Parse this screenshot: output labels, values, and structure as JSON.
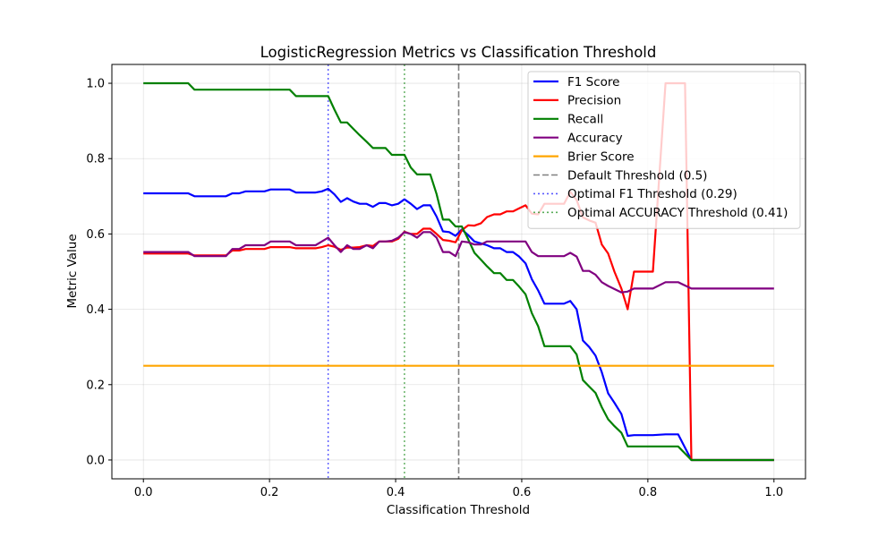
{
  "chart_data": {
    "type": "line",
    "title": "LogisticRegression Metrics vs Classification Threshold",
    "xlabel": "Classification Threshold",
    "ylabel": "Metric Value",
    "xlim": [
      -0.05,
      1.05
    ],
    "ylim": [
      -0.05,
      1.05
    ],
    "x_ticks": [
      0.0,
      0.2,
      0.4,
      0.6,
      0.8,
      1.0
    ],
    "y_ticks": [
      0.0,
      0.2,
      0.4,
      0.6,
      0.8,
      1.0
    ],
    "x_tick_labels": [
      "0.0",
      "0.2",
      "0.4",
      "0.6",
      "0.8",
      "1.0"
    ],
    "y_tick_labels": [
      "0.0",
      "0.2",
      "0.4",
      "0.6",
      "0.8",
      "1.0"
    ],
    "grid": true,
    "legend_position": "top-right",
    "series": [
      {
        "name": "F1 Score",
        "color": "#0000ff",
        "points": [
          [
            0.0,
            0.708
          ],
          [
            0.071,
            0.708
          ],
          [
            0.081,
            0.7
          ],
          [
            0.131,
            0.7
          ],
          [
            0.141,
            0.708
          ],
          [
            0.152,
            0.708
          ],
          [
            0.162,
            0.713
          ],
          [
            0.192,
            0.713
          ],
          [
            0.202,
            0.718
          ],
          [
            0.232,
            0.718
          ],
          [
            0.242,
            0.71
          ],
          [
            0.273,
            0.71
          ],
          [
            0.283,
            0.713
          ],
          [
            0.293,
            0.72
          ],
          [
            0.303,
            0.705
          ],
          [
            0.313,
            0.685
          ],
          [
            0.323,
            0.695
          ],
          [
            0.333,
            0.686
          ],
          [
            0.343,
            0.68
          ],
          [
            0.354,
            0.68
          ],
          [
            0.364,
            0.672
          ],
          [
            0.374,
            0.682
          ],
          [
            0.384,
            0.682
          ],
          [
            0.394,
            0.676
          ],
          [
            0.404,
            0.68
          ],
          [
            0.414,
            0.692
          ],
          [
            0.424,
            0.68
          ],
          [
            0.434,
            0.666
          ],
          [
            0.444,
            0.676
          ],
          [
            0.455,
            0.676
          ],
          [
            0.465,
            0.646
          ],
          [
            0.475,
            0.607
          ],
          [
            0.485,
            0.605
          ],
          [
            0.495,
            0.595
          ],
          [
            0.505,
            0.612
          ],
          [
            0.515,
            0.597
          ],
          [
            0.525,
            0.58
          ],
          [
            0.535,
            0.575
          ],
          [
            0.545,
            0.57
          ],
          [
            0.556,
            0.562
          ],
          [
            0.566,
            0.562
          ],
          [
            0.576,
            0.552
          ],
          [
            0.586,
            0.552
          ],
          [
            0.596,
            0.54
          ],
          [
            0.606,
            0.522
          ],
          [
            0.616,
            0.48
          ],
          [
            0.626,
            0.45
          ],
          [
            0.636,
            0.415
          ],
          [
            0.646,
            0.415
          ],
          [
            0.657,
            0.415
          ],
          [
            0.667,
            0.415
          ],
          [
            0.677,
            0.422
          ],
          [
            0.687,
            0.4
          ],
          [
            0.697,
            0.317
          ],
          [
            0.707,
            0.3
          ],
          [
            0.717,
            0.277
          ],
          [
            0.727,
            0.233
          ],
          [
            0.737,
            0.177
          ],
          [
            0.747,
            0.152
          ],
          [
            0.758,
            0.122
          ],
          [
            0.768,
            0.064
          ],
          [
            0.778,
            0.066
          ],
          [
            0.798,
            0.066
          ],
          [
            0.808,
            0.066
          ],
          [
            0.828,
            0.068
          ],
          [
            0.848,
            0.068
          ],
          [
            0.869,
            0.0
          ],
          [
            1.0,
            0.0
          ]
        ]
      },
      {
        "name": "Precision",
        "color": "#ff0000",
        "points": [
          [
            0.0,
            0.548
          ],
          [
            0.071,
            0.548
          ],
          [
            0.081,
            0.543
          ],
          [
            0.131,
            0.543
          ],
          [
            0.141,
            0.556
          ],
          [
            0.152,
            0.556
          ],
          [
            0.162,
            0.56
          ],
          [
            0.192,
            0.56
          ],
          [
            0.202,
            0.565
          ],
          [
            0.232,
            0.565
          ],
          [
            0.242,
            0.562
          ],
          [
            0.273,
            0.562
          ],
          [
            0.283,
            0.565
          ],
          [
            0.293,
            0.57
          ],
          [
            0.303,
            0.566
          ],
          [
            0.313,
            0.558
          ],
          [
            0.323,
            0.564
          ],
          [
            0.333,
            0.564
          ],
          [
            0.343,
            0.565
          ],
          [
            0.354,
            0.57
          ],
          [
            0.364,
            0.568
          ],
          [
            0.374,
            0.58
          ],
          [
            0.384,
            0.58
          ],
          [
            0.394,
            0.58
          ],
          [
            0.404,
            0.587
          ],
          [
            0.414,
            0.606
          ],
          [
            0.424,
            0.6
          ],
          [
            0.434,
            0.6
          ],
          [
            0.444,
            0.614
          ],
          [
            0.455,
            0.614
          ],
          [
            0.465,
            0.6
          ],
          [
            0.475,
            0.584
          ],
          [
            0.485,
            0.582
          ],
          [
            0.495,
            0.578
          ],
          [
            0.505,
            0.61
          ],
          [
            0.515,
            0.623
          ],
          [
            0.525,
            0.622
          ],
          [
            0.535,
            0.628
          ],
          [
            0.545,
            0.645
          ],
          [
            0.556,
            0.652
          ],
          [
            0.566,
            0.652
          ],
          [
            0.576,
            0.66
          ],
          [
            0.586,
            0.66
          ],
          [
            0.596,
            0.668
          ],
          [
            0.606,
            0.676
          ],
          [
            0.616,
            0.654
          ],
          [
            0.626,
            0.652
          ],
          [
            0.636,
            0.68
          ],
          [
            0.646,
            0.68
          ],
          [
            0.657,
            0.68
          ],
          [
            0.667,
            0.68
          ],
          [
            0.677,
            0.712
          ],
          [
            0.687,
            0.69
          ],
          [
            0.697,
            0.644
          ],
          [
            0.707,
            0.636
          ],
          [
            0.717,
            0.63
          ],
          [
            0.727,
            0.572
          ],
          [
            0.737,
            0.548
          ],
          [
            0.747,
            0.5
          ],
          [
            0.758,
            0.455
          ],
          [
            0.768,
            0.4
          ],
          [
            0.778,
            0.5
          ],
          [
            0.798,
            0.5
          ],
          [
            0.808,
            0.5
          ],
          [
            0.828,
            1.0
          ],
          [
            0.859,
            1.0
          ],
          [
            0.869,
            0.0
          ],
          [
            1.0,
            0.0
          ]
        ]
      },
      {
        "name": "Recall",
        "color": "#008000",
        "points": [
          [
            0.0,
            1.0
          ],
          [
            0.071,
            1.0
          ],
          [
            0.081,
            0.983
          ],
          [
            0.131,
            0.983
          ],
          [
            0.141,
            0.983
          ],
          [
            0.232,
            0.983
          ],
          [
            0.242,
            0.966
          ],
          [
            0.293,
            0.966
          ],
          [
            0.303,
            0.93
          ],
          [
            0.313,
            0.896
          ],
          [
            0.323,
            0.896
          ],
          [
            0.333,
            0.879
          ],
          [
            0.343,
            0.862
          ],
          [
            0.354,
            0.845
          ],
          [
            0.364,
            0.828
          ],
          [
            0.384,
            0.828
          ],
          [
            0.394,
            0.81
          ],
          [
            0.414,
            0.81
          ],
          [
            0.424,
            0.776
          ],
          [
            0.434,
            0.758
          ],
          [
            0.455,
            0.758
          ],
          [
            0.465,
            0.706
          ],
          [
            0.475,
            0.638
          ],
          [
            0.485,
            0.638
          ],
          [
            0.495,
            0.62
          ],
          [
            0.505,
            0.62
          ],
          [
            0.515,
            0.586
          ],
          [
            0.525,
            0.55
          ],
          [
            0.535,
            0.532
          ],
          [
            0.545,
            0.514
          ],
          [
            0.556,
            0.496
          ],
          [
            0.566,
            0.496
          ],
          [
            0.576,
            0.478
          ],
          [
            0.586,
            0.478
          ],
          [
            0.596,
            0.46
          ],
          [
            0.606,
            0.44
          ],
          [
            0.616,
            0.39
          ],
          [
            0.626,
            0.355
          ],
          [
            0.636,
            0.302
          ],
          [
            0.677,
            0.302
          ],
          [
            0.687,
            0.28
          ],
          [
            0.697,
            0.212
          ],
          [
            0.707,
            0.195
          ],
          [
            0.717,
            0.178
          ],
          [
            0.727,
            0.14
          ],
          [
            0.737,
            0.108
          ],
          [
            0.747,
            0.09
          ],
          [
            0.758,
            0.072
          ],
          [
            0.768,
            0.036
          ],
          [
            0.848,
            0.036
          ],
          [
            0.869,
            0.0
          ],
          [
            1.0,
            0.0
          ]
        ]
      },
      {
        "name": "Accuracy",
        "color": "#800080",
        "points": [
          [
            0.0,
            0.552
          ],
          [
            0.071,
            0.552
          ],
          [
            0.081,
            0.541
          ],
          [
            0.131,
            0.541
          ],
          [
            0.141,
            0.56
          ],
          [
            0.152,
            0.56
          ],
          [
            0.162,
            0.57
          ],
          [
            0.192,
            0.57
          ],
          [
            0.202,
            0.58
          ],
          [
            0.232,
            0.58
          ],
          [
            0.242,
            0.57
          ],
          [
            0.273,
            0.57
          ],
          [
            0.283,
            0.58
          ],
          [
            0.293,
            0.59
          ],
          [
            0.303,
            0.57
          ],
          [
            0.313,
            0.552
          ],
          [
            0.323,
            0.57
          ],
          [
            0.333,
            0.56
          ],
          [
            0.343,
            0.56
          ],
          [
            0.354,
            0.57
          ],
          [
            0.364,
            0.562
          ],
          [
            0.374,
            0.58
          ],
          [
            0.384,
            0.58
          ],
          [
            0.394,
            0.582
          ],
          [
            0.404,
            0.59
          ],
          [
            0.414,
            0.605
          ],
          [
            0.424,
            0.6
          ],
          [
            0.434,
            0.59
          ],
          [
            0.444,
            0.605
          ],
          [
            0.455,
            0.605
          ],
          [
            0.465,
            0.59
          ],
          [
            0.475,
            0.552
          ],
          [
            0.485,
            0.552
          ],
          [
            0.495,
            0.541
          ],
          [
            0.505,
            0.58
          ],
          [
            0.515,
            0.578
          ],
          [
            0.525,
            0.572
          ],
          [
            0.535,
            0.572
          ],
          [
            0.545,
            0.58
          ],
          [
            0.606,
            0.58
          ],
          [
            0.616,
            0.552
          ],
          [
            0.626,
            0.541
          ],
          [
            0.667,
            0.541
          ],
          [
            0.677,
            0.55
          ],
          [
            0.687,
            0.54
          ],
          [
            0.697,
            0.502
          ],
          [
            0.707,
            0.502
          ],
          [
            0.717,
            0.492
          ],
          [
            0.727,
            0.472
          ],
          [
            0.737,
            0.462
          ],
          [
            0.758,
            0.445
          ],
          [
            0.768,
            0.447
          ],
          [
            0.778,
            0.455
          ],
          [
            0.808,
            0.455
          ],
          [
            0.828,
            0.472
          ],
          [
            0.848,
            0.472
          ],
          [
            0.869,
            0.455
          ],
          [
            1.0,
            0.455
          ]
        ]
      },
      {
        "name": "Brier Score",
        "color": "#ffa500",
        "points": [
          [
            0.0,
            0.25
          ],
          [
            1.0,
            0.25
          ]
        ]
      }
    ],
    "reference_lines": [
      {
        "name": "Default Threshold (0.5)",
        "x": 0.5,
        "color": "#808080",
        "dash": "dashed"
      },
      {
        "name": "Optimal F1 Threshold (0.29)",
        "x": 0.293,
        "color": "#0000ff",
        "dash": "dotted"
      },
      {
        "name": "Optimal ACCURACY Threshold (0.41)",
        "x": 0.414,
        "color": "#008000",
        "dash": "dotted"
      }
    ]
  }
}
